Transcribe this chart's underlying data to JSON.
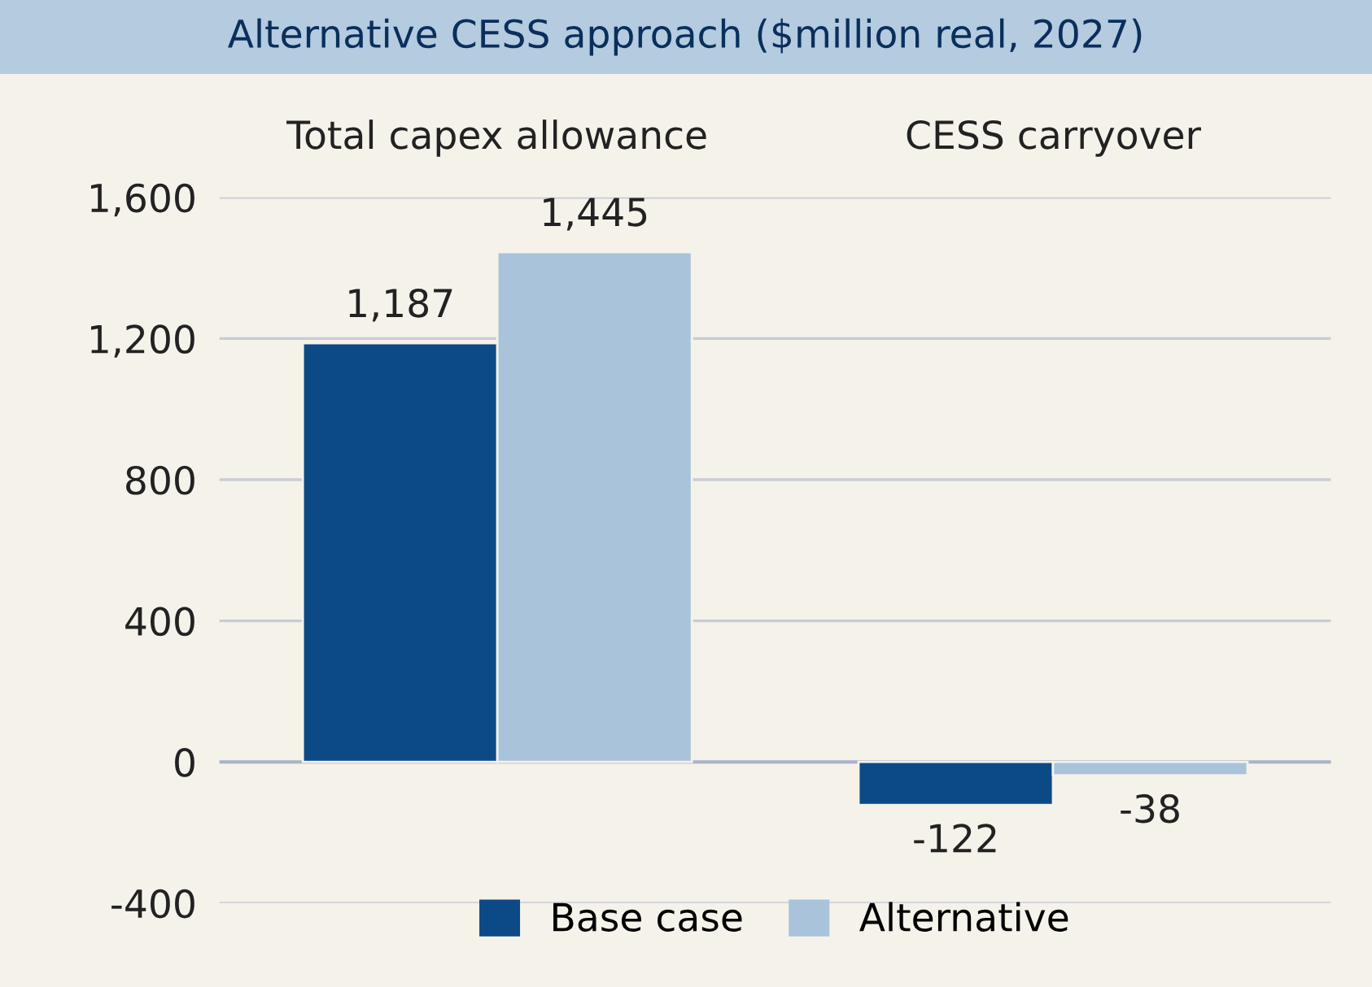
{
  "chart_data": {
    "type": "bar",
    "title": "Alternative CESS approach ($million real, 2027)",
    "categories": [
      "Total capex allowance",
      "CESS carryover"
    ],
    "series": [
      {
        "name": "Base case",
        "color": "#0c4a86",
        "values": [
          1187,
          -122
        ],
        "value_labels": [
          "1,187",
          "-122"
        ]
      },
      {
        "name": "Alternative",
        "color": "#a9c3da",
        "values": [
          1445,
          -38
        ],
        "value_labels": [
          "1,445",
          "-38"
        ]
      }
    ],
    "ylim": [
      -400,
      1600
    ],
    "yticks": [
      {
        "value": -400,
        "label": "-400"
      },
      0,
      {
        "value": 400,
        "label": "400"
      },
      {
        "value": 800,
        "label": "800"
      },
      {
        "value": 1200,
        "label": "1,200"
      },
      {
        "value": 1600,
        "label": "1,600"
      }
    ],
    "grid": "y",
    "legend": "bottom"
  }
}
